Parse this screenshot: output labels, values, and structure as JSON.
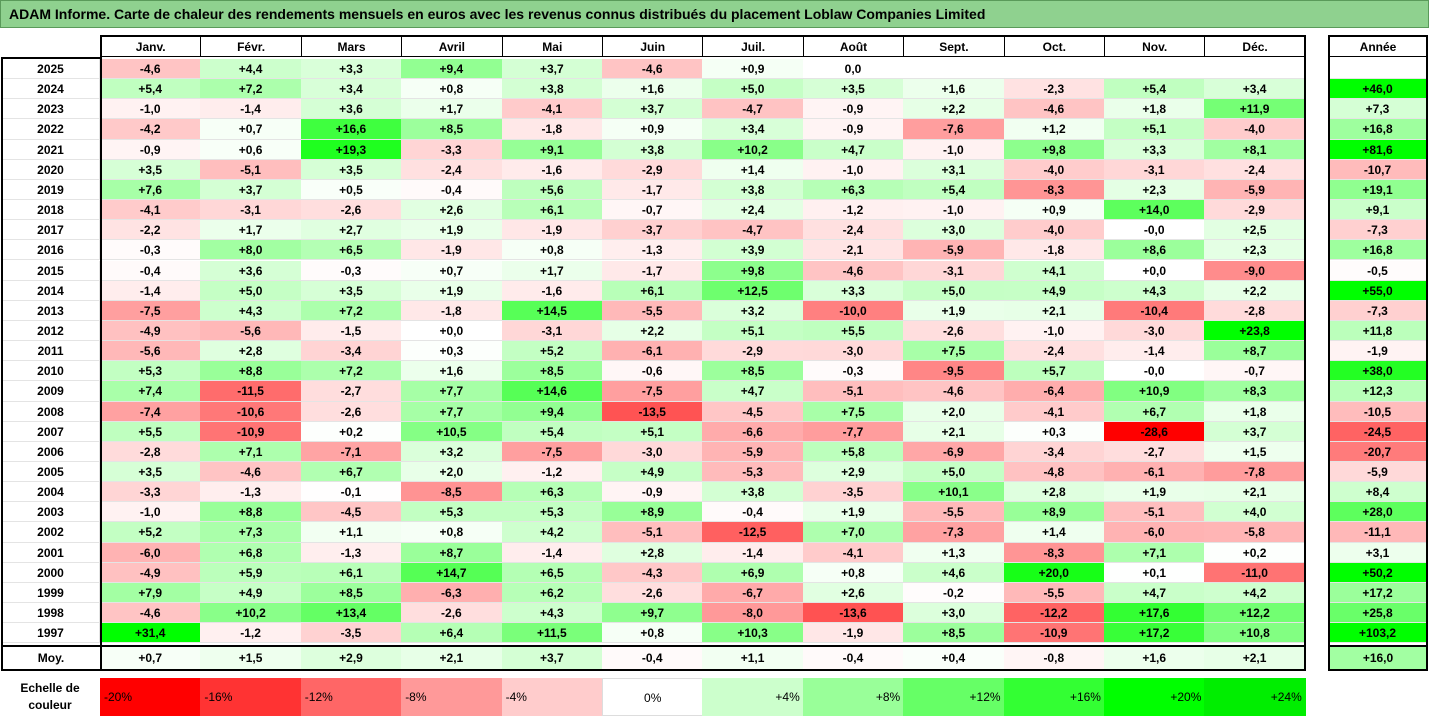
{
  "title": "ADAM Informe. Carte de chaleur des rendements mensuels en euros avec les revenus connus distribués du placement Loblaw Companies Limited",
  "chart_data": {
    "type": "heatmap",
    "columns": [
      "Janv.",
      "Févr.",
      "Mars",
      "Avril",
      "Mai",
      "Juin",
      "Juil.",
      "Août",
      "Sept.",
      "Oct.",
      "Nov.",
      "Déc."
    ],
    "annual_header": "Année",
    "rows": [
      {
        "year": "2025",
        "values": [
          "-4,6",
          "+4,4",
          "+3,3",
          "+9,4",
          "+3,7",
          "-4,6",
          "+0,9",
          "0,0",
          "",
          "",
          "",
          ""
        ],
        "annual": ""
      },
      {
        "year": "2024",
        "values": [
          "+5,4",
          "+7,2",
          "+3,4",
          "+0,8",
          "+3,8",
          "+1,6",
          "+5,0",
          "+3,5",
          "+1,6",
          "-2,3",
          "+5,4",
          "+3,4"
        ],
        "annual": "+46,0"
      },
      {
        "year": "2023",
        "values": [
          "-1,0",
          "-1,4",
          "+3,6",
          "+1,7",
          "-4,1",
          "+3,7",
          "-4,7",
          "-0,9",
          "+2,2",
          "-4,6",
          "+1,8",
          "+11,9"
        ],
        "annual": "+7,3"
      },
      {
        "year": "2022",
        "values": [
          "-4,2",
          "+0,7",
          "+16,6",
          "+8,5",
          "-1,8",
          "+0,9",
          "+3,4",
          "-0,9",
          "-7,6",
          "+1,2",
          "+5,1",
          "-4,0"
        ],
        "annual": "+16,8"
      },
      {
        "year": "2021",
        "values": [
          "-0,9",
          "+0,6",
          "+19,3",
          "-3,3",
          "+9,1",
          "+3,8",
          "+10,2",
          "+4,7",
          "-1,0",
          "+9,8",
          "+3,3",
          "+8,1"
        ],
        "annual": "+81,6"
      },
      {
        "year": "2020",
        "values": [
          "+3,5",
          "-5,1",
          "+3,5",
          "-2,4",
          "-1,6",
          "-2,9",
          "+1,4",
          "-1,0",
          "+3,1",
          "-4,0",
          "-3,1",
          "-2,4"
        ],
        "annual": "-10,7"
      },
      {
        "year": "2019",
        "values": [
          "+7,6",
          "+3,7",
          "+0,5",
          "-0,4",
          "+5,6",
          "-1,7",
          "+3,8",
          "+6,3",
          "+5,4",
          "-8,3",
          "+2,3",
          "-5,9"
        ],
        "annual": "+19,1"
      },
      {
        "year": "2018",
        "values": [
          "-4,1",
          "-3,1",
          "-2,6",
          "+2,6",
          "+6,1",
          "-0,7",
          "+2,4",
          "-1,2",
          "-1,0",
          "+0,9",
          "+14,0",
          "-2,9"
        ],
        "annual": "+9,1"
      },
      {
        "year": "2017",
        "values": [
          "-2,2",
          "+1,7",
          "+2,7",
          "+1,9",
          "-1,9",
          "-3,7",
          "-4,7",
          "-2,4",
          "+3,0",
          "-4,0",
          "-0,0",
          "+2,5"
        ],
        "annual": "-7,3"
      },
      {
        "year": "2016",
        "values": [
          "-0,3",
          "+8,0",
          "+6,5",
          "-1,9",
          "+0,8",
          "-1,3",
          "+3,9",
          "-2,1",
          "-5,9",
          "-1,8",
          "+8,6",
          "+2,3"
        ],
        "annual": "+16,8"
      },
      {
        "year": "2015",
        "values": [
          "-0,4",
          "+3,6",
          "-0,3",
          "+0,7",
          "+1,7",
          "-1,7",
          "+9,8",
          "-4,6",
          "-3,1",
          "+4,1",
          "+0,0",
          "-9,0"
        ],
        "annual": "-0,5"
      },
      {
        "year": "2014",
        "values": [
          "-1,4",
          "+5,0",
          "+3,5",
          "+1,9",
          "-1,6",
          "+6,1",
          "+12,5",
          "+3,3",
          "+5,0",
          "+4,9",
          "+4,3",
          "+2,2"
        ],
        "annual": "+55,0"
      },
      {
        "year": "2013",
        "values": [
          "-7,5",
          "+4,3",
          "+7,2",
          "-1,8",
          "+14,5",
          "-5,5",
          "+3,2",
          "-10,0",
          "+1,9",
          "+2,1",
          "-10,4",
          "-2,8"
        ],
        "annual": "-7,3"
      },
      {
        "year": "2012",
        "values": [
          "-4,9",
          "-5,6",
          "-1,5",
          "+0,0",
          "-3,1",
          "+2,2",
          "+5,1",
          "+5,5",
          "-2,6",
          "-1,0",
          "-3,0",
          "+23,8"
        ],
        "annual": "+11,8"
      },
      {
        "year": "2011",
        "values": [
          "-5,6",
          "+2,8",
          "-3,4",
          "+0,3",
          "+5,2",
          "-6,1",
          "-2,9",
          "-3,0",
          "+7,5",
          "-2,4",
          "-1,4",
          "+8,7"
        ],
        "annual": "-1,9"
      },
      {
        "year": "2010",
        "values": [
          "+5,3",
          "+8,8",
          "+7,2",
          "+1,6",
          "+8,5",
          "-0,6",
          "+8,5",
          "-0,3",
          "-9,5",
          "+5,7",
          "-0,0",
          "-0,7"
        ],
        "annual": "+38,0"
      },
      {
        "year": "2009",
        "values": [
          "+7,4",
          "-11,5",
          "-2,7",
          "+7,7",
          "+14,6",
          "-7,5",
          "+4,7",
          "-5,1",
          "-4,6",
          "-6,4",
          "+10,9",
          "+8,3"
        ],
        "annual": "+12,3"
      },
      {
        "year": "2008",
        "values": [
          "-7,4",
          "-10,6",
          "-2,6",
          "+7,7",
          "+9,4",
          "-13,5",
          "-4,5",
          "+7,5",
          "+2,0",
          "-4,1",
          "+6,7",
          "+1,8"
        ],
        "annual": "-10,5"
      },
      {
        "year": "2007",
        "values": [
          "+5,5",
          "-10,9",
          "+0,2",
          "+10,5",
          "+5,4",
          "+5,1",
          "-6,6",
          "-7,7",
          "+2,1",
          "+0,3",
          "-28,6",
          "+3,7"
        ],
        "annual": "-24,5"
      },
      {
        "year": "2006",
        "values": [
          "-2,8",
          "+7,1",
          "-7,1",
          "+3,2",
          "-7,5",
          "-3,0",
          "-5,9",
          "+5,8",
          "-6,9",
          "-3,4",
          "-2,7",
          "+1,5"
        ],
        "annual": "-20,7"
      },
      {
        "year": "2005",
        "values": [
          "+3,5",
          "-4,6",
          "+6,7",
          "+2,0",
          "-1,2",
          "+4,9",
          "-5,3",
          "+2,9",
          "+5,0",
          "-4,8",
          "-6,1",
          "-7,8"
        ],
        "annual": "-5,9"
      },
      {
        "year": "2004",
        "values": [
          "-3,3",
          "-1,3",
          "-0,1",
          "-8,5",
          "+6,3",
          "-0,9",
          "+3,8",
          "-3,5",
          "+10,1",
          "+2,8",
          "+1,9",
          "+2,1"
        ],
        "annual": "+8,4"
      },
      {
        "year": "2003",
        "values": [
          "-1,0",
          "+8,8",
          "-4,5",
          "+5,3",
          "+5,3",
          "+8,9",
          "-0,4",
          "+1,9",
          "-5,5",
          "+8,9",
          "-5,1",
          "+4,0"
        ],
        "annual": "+28,0"
      },
      {
        "year": "2002",
        "values": [
          "+5,2",
          "+7,3",
          "+1,1",
          "+0,8",
          "+4,2",
          "-5,1",
          "-12,5",
          "+7,0",
          "-7,3",
          "+1,4",
          "-6,0",
          "-5,8"
        ],
        "annual": "-11,1"
      },
      {
        "year": "2001",
        "values": [
          "-6,0",
          "+6,8",
          "-1,3",
          "+8,7",
          "-1,4",
          "+2,8",
          "-1,4",
          "-4,1",
          "+1,3",
          "-8,3",
          "+7,1",
          "+0,2"
        ],
        "annual": "+3,1"
      },
      {
        "year": "2000",
        "values": [
          "-4,9",
          "+5,9",
          "+6,1",
          "+14,7",
          "+6,5",
          "-4,3",
          "+6,9",
          "+0,8",
          "+4,6",
          "+20,0",
          "+0,1",
          "-11,0"
        ],
        "annual": "+50,2"
      },
      {
        "year": "1999",
        "values": [
          "+7,9",
          "+4,9",
          "+8,5",
          "-6,3",
          "+6,2",
          "-2,6",
          "-6,7",
          "+2,6",
          "-0,2",
          "-5,5",
          "+4,7",
          "+4,2"
        ],
        "annual": "+17,2"
      },
      {
        "year": "1998",
        "values": [
          "-4,6",
          "+10,2",
          "+13,4",
          "-2,6",
          "+4,3",
          "+9,7",
          "-8,0",
          "-13,6",
          "+3,0",
          "-12,2",
          "+17,6",
          "+12,2"
        ],
        "annual": "+25,8"
      },
      {
        "year": "1997",
        "values": [
          "+31,4",
          "-1,2",
          "-3,5",
          "+6,4",
          "+11,5",
          "+0,8",
          "+10,3",
          "-1,9",
          "+8,5",
          "-10,9",
          "+17,2",
          "+10,8"
        ],
        "annual": "+103,2"
      }
    ],
    "average": {
      "label": "Moy.",
      "values": [
        "+0,7",
        "+1,5",
        "+2,9",
        "+2,1",
        "+3,7",
        "-0,4",
        "+1,1",
        "-0,4",
        "+0,4",
        "-0,8",
        "+1,6",
        "+2,1"
      ],
      "annual": "+16,0"
    },
    "scale": {
      "label": "Echelle de couleur",
      "steps": [
        {
          "label": "-20%",
          "color": "#ff0000"
        },
        {
          "label": "-16%",
          "color": "#ff3333"
        },
        {
          "label": "-12%",
          "color": "#ff6666"
        },
        {
          "label": "-8%",
          "color": "#ff9999"
        },
        {
          "label": "-4%",
          "color": "#ffcccc"
        },
        {
          "label": "0%",
          "color": "#ffffff"
        },
        {
          "label": "+4%",
          "color": "#ccffcc"
        },
        {
          "label": "+8%",
          "color": "#99ff99"
        },
        {
          "label": "+12%",
          "color": "#66ff66"
        },
        {
          "label": "+16%",
          "color": "#33ff33"
        },
        {
          "label": "+20%",
          "color": "#00ff00"
        },
        {
          "label": "+24%",
          "color": "#00ee00"
        }
      ]
    }
  }
}
